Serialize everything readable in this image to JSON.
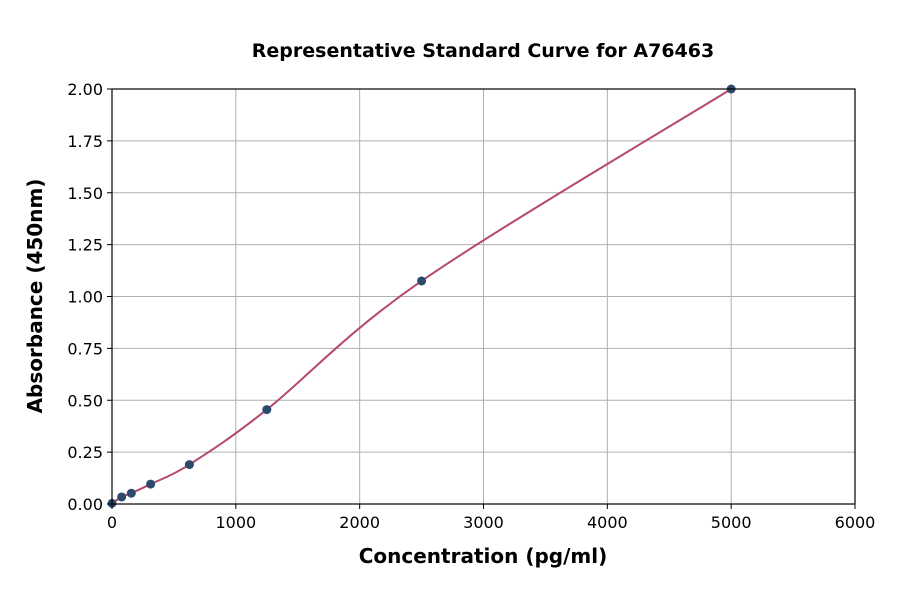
{
  "chart_data": {
    "type": "scatter",
    "title": "Representative Standard Curve for A76463",
    "xlabel": "Concentration (pg/ml)",
    "ylabel": "Absorbance (450nm)",
    "xlim": [
      0,
      6000
    ],
    "ylim": [
      0,
      2.0
    ],
    "xticks": [
      "0",
      "1000",
      "2000",
      "3000",
      "4000",
      "5000",
      "6000"
    ],
    "yticks": [
      "0.00",
      "0.25",
      "0.50",
      "0.75",
      "1.00",
      "1.25",
      "1.50",
      "1.75",
      "2.00"
    ],
    "grid": true,
    "points": [
      {
        "x": 0,
        "y": 0.003
      },
      {
        "x": 78,
        "y": 0.034
      },
      {
        "x": 156,
        "y": 0.052
      },
      {
        "x": 312,
        "y": 0.096
      },
      {
        "x": 625,
        "y": 0.19
      },
      {
        "x": 1250,
        "y": 0.455
      },
      {
        "x": 2500,
        "y": 1.075
      },
      {
        "x": 5000,
        "y": 2.0
      }
    ],
    "colors": {
      "points": "#2e4a6b",
      "curve": "#b5496e",
      "grid": "#b0b0b0"
    }
  }
}
